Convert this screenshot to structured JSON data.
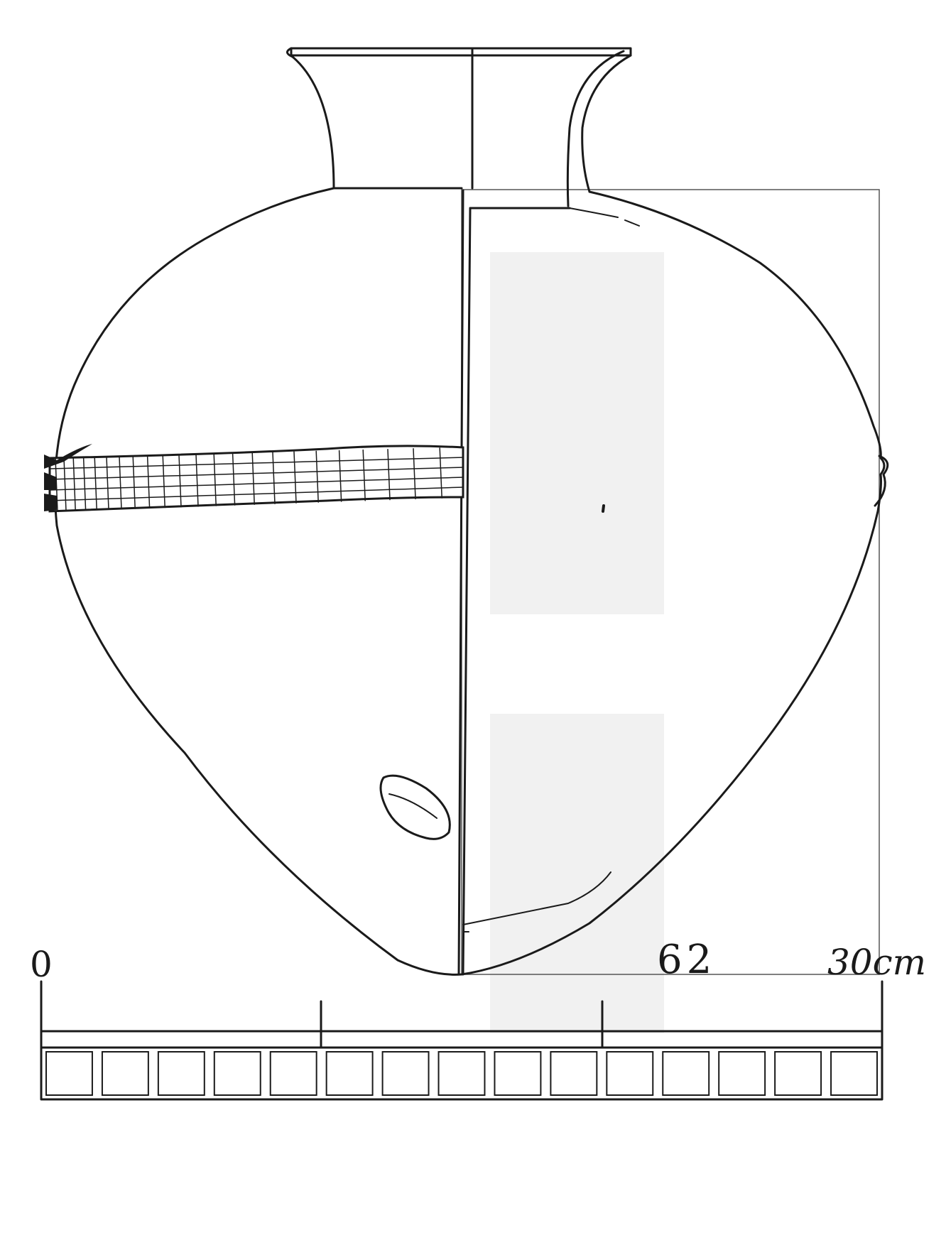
{
  "figure": {
    "number_label": "62"
  },
  "scale_bar": {
    "start_label": "0",
    "end_label": "30cm",
    "segments": 15,
    "major_ticks": 4
  },
  "colors": {
    "ink": "#1a1a1a",
    "paper": "#ffffff"
  }
}
